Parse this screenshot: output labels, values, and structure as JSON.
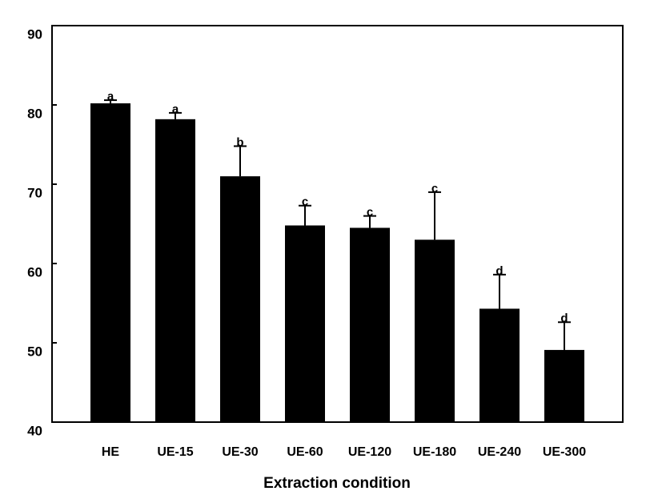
{
  "chart_data": {
    "type": "bar",
    "xlabel": "Extraction condition",
    "categories": [
      "HE",
      "UE-15",
      "UE-30",
      "UE-60",
      "UE-120",
      "UE-180",
      "UE-240",
      "UE-300"
    ],
    "values": [
      80.2,
      78.2,
      71.0,
      64.8,
      64.5,
      63.0,
      54.3,
      49.1
    ],
    "errors": [
      0.4,
      0.8,
      3.8,
      2.5,
      1.5,
      6.0,
      4.3,
      3.5
    ],
    "letters": [
      "a",
      "a",
      "b",
      "c",
      "c",
      "c",
      "d",
      "d"
    ],
    "color": "#000000",
    "ylim": [
      40,
      90
    ],
    "yticks": [
      40,
      50,
      60,
      70,
      80,
      90
    ],
    "grid": false
  }
}
